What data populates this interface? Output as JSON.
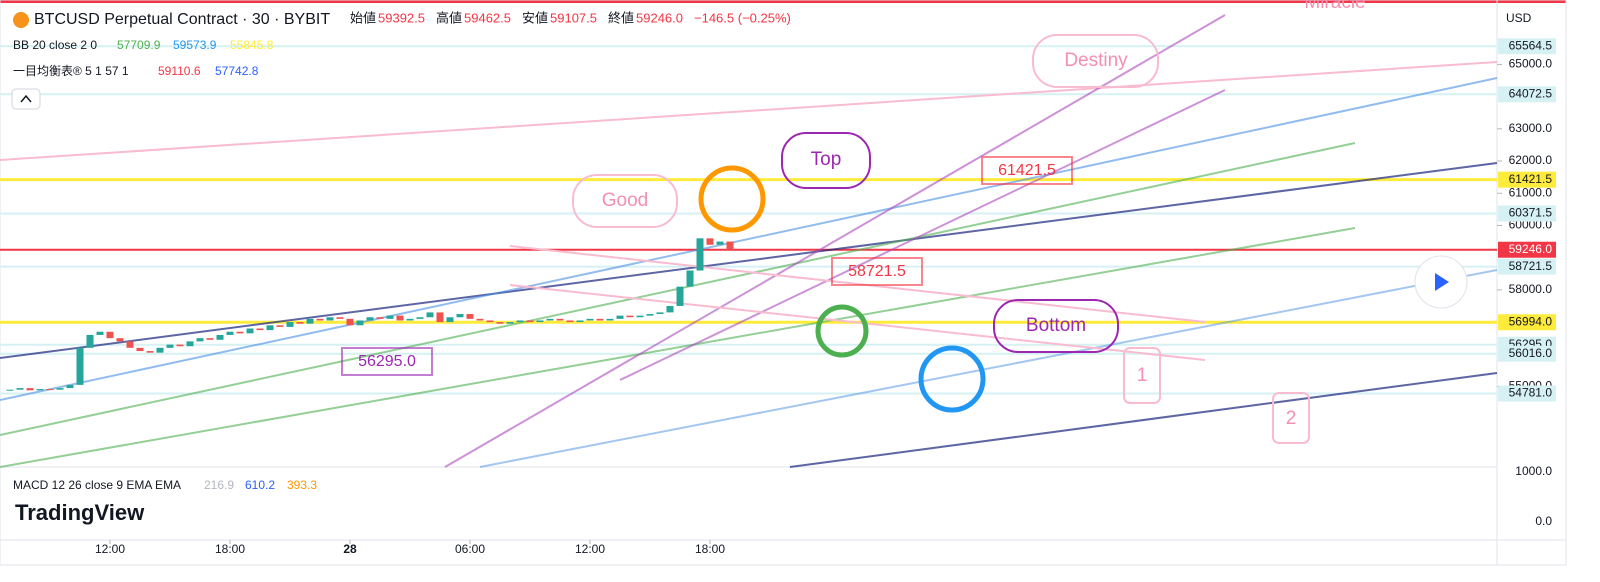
{
  "header": {
    "symbol": "BTCUSD Perpetual Contract · 30 · BYBIT",
    "open_label": "始値",
    "open": "59392.5",
    "high_label": "高値",
    "high": "59462.5",
    "low_label": "安値",
    "low": "59107.5",
    "close_label": "終値",
    "close": "59246.0",
    "change": "−146.5 (−0.25%)"
  },
  "indicators": {
    "bb": {
      "name": "BB 20 close 2 0",
      "values": [
        "57709.9",
        "59573.9",
        "55845.8"
      ]
    },
    "ichimoku": {
      "name": "一目均衡表® 5 1 57 1",
      "values": [
        "59110.6",
        "57742.8"
      ]
    },
    "macd": {
      "name": "MACD 12 26 close 9 EMA EMA",
      "values": [
        "216.9",
        "610.2",
        "393.3"
      ]
    }
  },
  "currency": "USD",
  "brand": "TradingView",
  "annotations": {
    "good": "Good",
    "top": "Top",
    "destiny": "Destiny",
    "miracle": "Miracle",
    "bottom": "Bottom",
    "price_a": "61421.5",
    "price_b": "58721.5",
    "price_c": "56295.0",
    "one": "1",
    "two": "2"
  },
  "chart_data": {
    "type": "candlestick",
    "values": [
      54900,
      54950,
      54880,
      54920,
      54900,
      54950,
      55050,
      56200,
      56600,
      56700,
      56500,
      56400,
      56200,
      56100,
      56050,
      56200,
      56300,
      56250,
      56400,
      56500,
      56450,
      56600,
      56700,
      56650,
      56800,
      56750,
      56900,
      56850,
      57000,
      56950,
      57100,
      57050,
      57150,
      57100,
      56900,
      57050,
      57150,
      57100,
      57200,
      57050,
      57100,
      57150,
      57300,
      57000,
      57150,
      57250,
      57100,
      57050,
      57000,
      56950,
      57000,
      57050,
      57000,
      57050,
      57100,
      57050,
      57000,
      57050,
      57100,
      57050,
      57100,
      57200,
      57150,
      57200,
      57250,
      57300,
      57500,
      58100,
      58600,
      59600,
      59400,
      59500,
      59246
    ],
    "up_color": "#26a69a",
    "down_color": "#ef5350",
    "ylim": [
      52500,
      67000
    ],
    "yticks": [
      {
        "value": 55000,
        "label": "55000.0"
      },
      {
        "value": 58000,
        "label": "58000.0"
      },
      {
        "value": 60000,
        "label": "60000.0"
      },
      {
        "value": 61000,
        "label": "61000.0"
      },
      {
        "value": 62000,
        "label": "62000.0"
      },
      {
        "value": 63000,
        "label": "63000.0"
      },
      {
        "value": 65000,
        "label": "65000.0"
      }
    ],
    "price_labels": [
      {
        "value": 65564.5,
        "label": "65564.5",
        "color": "#d6f1f4"
      },
      {
        "value": 64072.5,
        "label": "64072.5",
        "color": "#d6f1f4"
      },
      {
        "value": 61421.5,
        "label": "61421.5",
        "color": "#ffeb3b"
      },
      {
        "value": 60371.5,
        "label": "60371.5",
        "color": "#d6f1f4"
      },
      {
        "value": 59246.0,
        "label": "59246.0",
        "color": "#f23645"
      },
      {
        "value": 58721.5,
        "label": "58721.5",
        "color": "#d6f1f4"
      },
      {
        "value": 56994.0,
        "label": "56994.0",
        "color": "#ffeb3b"
      },
      {
        "value": 56295.0,
        "label": "56295.0",
        "color": "#d6f1f4"
      },
      {
        "value": 56016.0,
        "label": "56016.0",
        "color": "#d6f1f4"
      },
      {
        "value": 54781.0,
        "label": "54781.0",
        "color": "#d6f1f4"
      }
    ],
    "xticks": [
      {
        "value": 10,
        "label": "12:00"
      },
      {
        "value": 22,
        "label": "18:00"
      },
      {
        "value": 34,
        "label": "28"
      },
      {
        "value": 46,
        "label": "06:00"
      },
      {
        "value": 58,
        "label": "12:00"
      },
      {
        "value": 70,
        "label": "18:00"
      }
    ],
    "macd_ticks": [
      {
        "value": 1000,
        "label": "1000.0"
      },
      {
        "value": 0,
        "label": "0.0"
      }
    ]
  }
}
